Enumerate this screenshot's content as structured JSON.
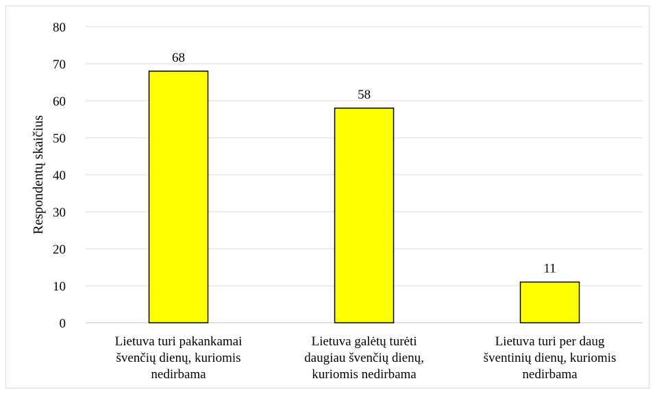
{
  "chart_data": {
    "type": "bar",
    "title": "",
    "xlabel": "",
    "ylabel": "Respondentų skaičius",
    "ylim": [
      0,
      80
    ],
    "yticks": [
      0,
      10,
      20,
      30,
      40,
      50,
      60,
      70,
      80
    ],
    "grid": true,
    "legend": "none",
    "bar_color": "#FFFF00",
    "bar_border_color": "#000000",
    "categories": [
      [
        "Lietuva turi pakankamai",
        "švenčių dienų, kuriomis",
        "nedirbama"
      ],
      [
        "Lietuva galėtų turėti",
        "daugiau švenčių dienų,",
        "kuriomis nedirbama"
      ],
      [
        "Lietuva turi per daug",
        "šventinių dienų, kuriomis",
        "nedirbama"
      ]
    ],
    "values": [
      68,
      58,
      11
    ]
  }
}
